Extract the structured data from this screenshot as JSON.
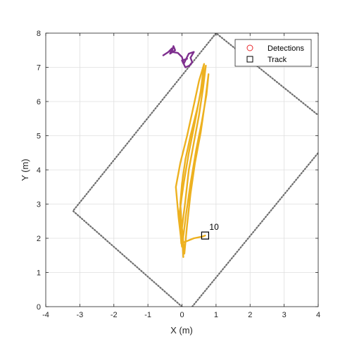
{
  "chart_data": {
    "type": "line",
    "title": "",
    "xlabel": "X (m)",
    "ylabel": "Y (m)",
    "xlim": [
      -4,
      4
    ],
    "ylim": [
      0,
      8
    ],
    "xticks": [
      -4,
      -3,
      -2,
      -1,
      0,
      1,
      2,
      3,
      4
    ],
    "yticks": [
      0,
      1,
      2,
      3,
      4,
      5,
      6,
      7,
      8
    ],
    "grid": true,
    "legend": {
      "placement": "top-right",
      "entries": [
        {
          "label": "Detections",
          "marker": "circle",
          "color": "#e8282b"
        },
        {
          "label": "Track",
          "marker": "square",
          "color": "#000000"
        }
      ]
    },
    "coverage_boundary": {
      "color": "#6f6f6f",
      "points": [
        [
          0,
          0
        ],
        [
          -3.2,
          2.8
        ],
        [
          1.0,
          8.0
        ],
        [
          4.0,
          5.6
        ]
      ]
    },
    "coverage_boundary_2": {
      "color": "#6f6f6f",
      "points": [
        [
          0.3,
          0
        ],
        [
          4.0,
          4.5
        ]
      ]
    },
    "series": [
      {
        "color": "#edb120",
        "points": [
          [
            0.04,
            1.45
          ],
          [
            0.0,
            2.2
          ],
          [
            -0.05,
            3.0
          ],
          [
            0.0,
            3.6
          ],
          [
            0.1,
            4.3
          ],
          [
            0.25,
            5.0
          ],
          [
            0.45,
            5.8
          ],
          [
            0.6,
            6.5
          ],
          [
            0.7,
            7.05
          ],
          [
            0.62,
            6.4
          ],
          [
            0.5,
            5.6
          ],
          [
            0.35,
            4.8
          ],
          [
            0.2,
            4.0
          ],
          [
            0.1,
            3.1
          ],
          [
            0.0,
            2.3
          ],
          [
            0.07,
            1.55
          ],
          [
            0.15,
            2.4
          ],
          [
            0.25,
            3.3
          ],
          [
            0.38,
            4.2
          ],
          [
            0.55,
            5.1
          ],
          [
            0.68,
            6.0
          ],
          [
            0.78,
            6.8
          ],
          [
            0.72,
            6.2
          ],
          [
            0.58,
            5.4
          ],
          [
            0.42,
            4.6
          ],
          [
            0.25,
            3.6
          ],
          [
            0.12,
            2.7
          ],
          [
            0.0,
            1.75
          ],
          [
            -0.1,
            2.6
          ],
          [
            -0.18,
            3.5
          ],
          [
            -0.05,
            4.2
          ],
          [
            0.15,
            5.0
          ],
          [
            0.35,
            5.9
          ],
          [
            0.5,
            6.6
          ],
          [
            0.65,
            7.1
          ],
          [
            0.55,
            6.3
          ],
          [
            0.38,
            5.4
          ],
          [
            0.2,
            4.5
          ],
          [
            0.05,
            3.6
          ],
          [
            -0.08,
            2.7
          ],
          [
            -0.02,
            1.85
          ],
          [
            0.1,
            1.9
          ],
          [
            0.35,
            2.0
          ],
          [
            0.6,
            2.05
          ],
          [
            0.68,
            2.08
          ]
        ]
      },
      {
        "color": "#7e2f8e",
        "points": [
          [
            -0.55,
            7.35
          ],
          [
            -0.4,
            7.45
          ],
          [
            -0.3,
            7.55
          ],
          [
            -0.35,
            7.4
          ],
          [
            -0.2,
            7.5
          ],
          [
            -0.25,
            7.62
          ],
          [
            -0.3,
            7.45
          ],
          [
            -0.12,
            7.42
          ],
          [
            0.0,
            7.3
          ],
          [
            0.05,
            7.1
          ],
          [
            0.1,
            7.2
          ],
          [
            0.2,
            7.4
          ],
          [
            0.35,
            7.45
          ],
          [
            0.25,
            7.28
          ],
          [
            0.3,
            7.15
          ],
          [
            0.22,
            7.05
          ],
          [
            0.1,
            7.0
          ],
          [
            0.0,
            7.2
          ],
          [
            0.15,
            7.25
          ]
        ]
      }
    ],
    "track": {
      "x": 0.68,
      "y": 2.08,
      "label": "10"
    }
  }
}
